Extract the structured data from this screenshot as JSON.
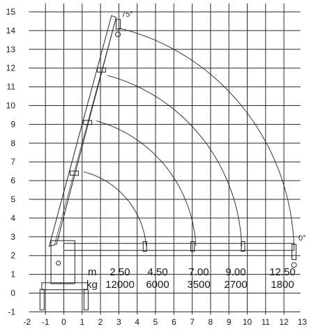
{
  "chart_data": {
    "type": "diagram",
    "title": "",
    "x_ticks": [
      "-2",
      "-1",
      "0",
      "1",
      "2",
      "3",
      "4",
      "5",
      "6",
      "7",
      "8",
      "9",
      "10",
      "11",
      "12",
      "13"
    ],
    "y_ticks": [
      "-1",
      "0",
      "1",
      "2",
      "3",
      "4",
      "5",
      "6",
      "7",
      "8",
      "9",
      "10",
      "11",
      "12",
      "13",
      "14",
      "15"
    ],
    "xlim": [
      -2,
      13
    ],
    "ylim": [
      -1,
      15.5
    ],
    "angle_top": "75°",
    "angle_bottom": "0°",
    "reach_arcs_m": [
      2.5,
      4.5,
      7.0,
      9.0,
      12.5
    ],
    "table": {
      "m_label": "m",
      "kg_label": "kg",
      "m_values": [
        "2.50",
        "4.50",
        "7.00",
        "9.00",
        "12.50"
      ],
      "kg_values": [
        "12000",
        "6000",
        "3500",
        "2700",
        "1800"
      ]
    }
  }
}
